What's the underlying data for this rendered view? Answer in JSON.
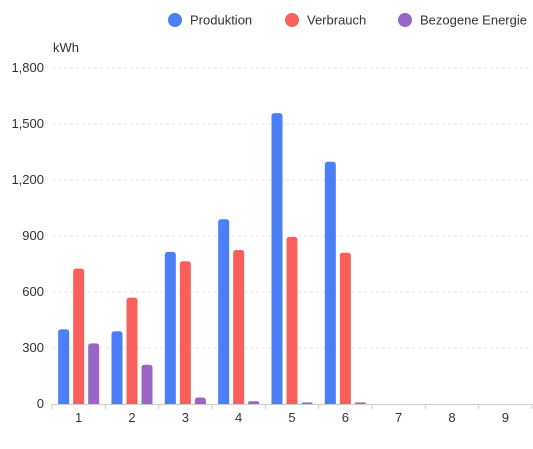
{
  "chart_data": {
    "type": "bar",
    "title": "",
    "xlabel": "",
    "ylabel": "kWh",
    "categories": [
      "1",
      "2",
      "3",
      "4",
      "5",
      "6",
      "7",
      "8",
      "9"
    ],
    "series": [
      {
        "name": "Produktion",
        "color": "#4a7ff7",
        "values": [
          400,
          390,
          815,
          990,
          1558,
          1298,
          null,
          null,
          null
        ]
      },
      {
        "name": "Verbrauch",
        "color": "#fb5f5c",
        "values": [
          725,
          570,
          765,
          825,
          895,
          810,
          null,
          null,
          null
        ]
      },
      {
        "name": "Bezogene Energie",
        "color": "#9966c6",
        "values": [
          325,
          210,
          35,
          15,
          3,
          4,
          null,
          null,
          null
        ]
      }
    ],
    "ylim": [
      0,
      1800
    ],
    "yticks": [
      0,
      300,
      600,
      900,
      1200,
      1500,
      1800
    ],
    "ytick_labels": [
      "0",
      "300",
      "600",
      "900",
      "1,200",
      "1,500",
      "1,800"
    ],
    "grid": true,
    "legend_position": "top-right"
  }
}
